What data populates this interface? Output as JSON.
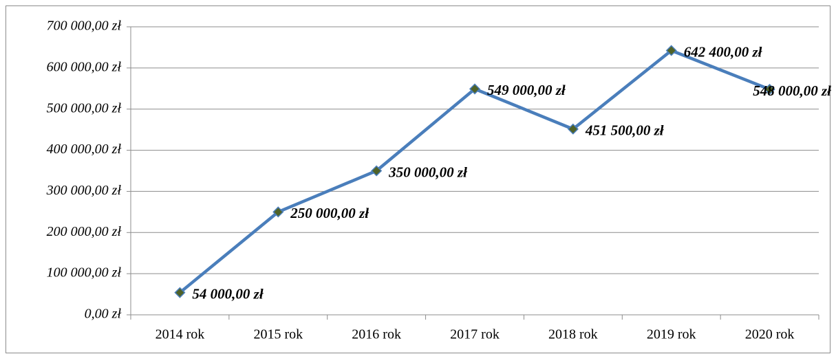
{
  "chart_data": {
    "type": "line",
    "categories": [
      "2014 rok",
      "2015 rok",
      "2016 rok",
      "2017 rok",
      "2018 rok",
      "2019 rok",
      "2020 rok"
    ],
    "series": [
      {
        "color": "#4a7ebb",
        "marker_color": "#4f6228",
        "values": [
          54000,
          250000,
          350000,
          549000,
          451500,
          642400,
          548000
        ],
        "value_labels": [
          "54 000,00 zł",
          "250 000,00 zł",
          "350 000,00 zł",
          "549 000,00 zł",
          "451 500,00 zł",
          "642 400,00 zł",
          "548 000,00 zł"
        ]
      }
    ],
    "ylim": [
      0,
      700000
    ],
    "yticks": [
      {
        "value": 0,
        "label": "0,00 zł"
      },
      {
        "value": 100000,
        "label": "100 000,00 zł"
      },
      {
        "value": 200000,
        "label": "200 000,00 zł"
      },
      {
        "value": 300000,
        "label": "300 000,00 zł"
      },
      {
        "value": 400000,
        "label": "400 000,00 zł"
      },
      {
        "value": 500000,
        "label": "500 000,00 zł"
      },
      {
        "value": 600000,
        "label": "600 000,00 zł"
      },
      {
        "value": 700000,
        "label": "700 000,00 zł"
      }
    ],
    "grid": true
  }
}
